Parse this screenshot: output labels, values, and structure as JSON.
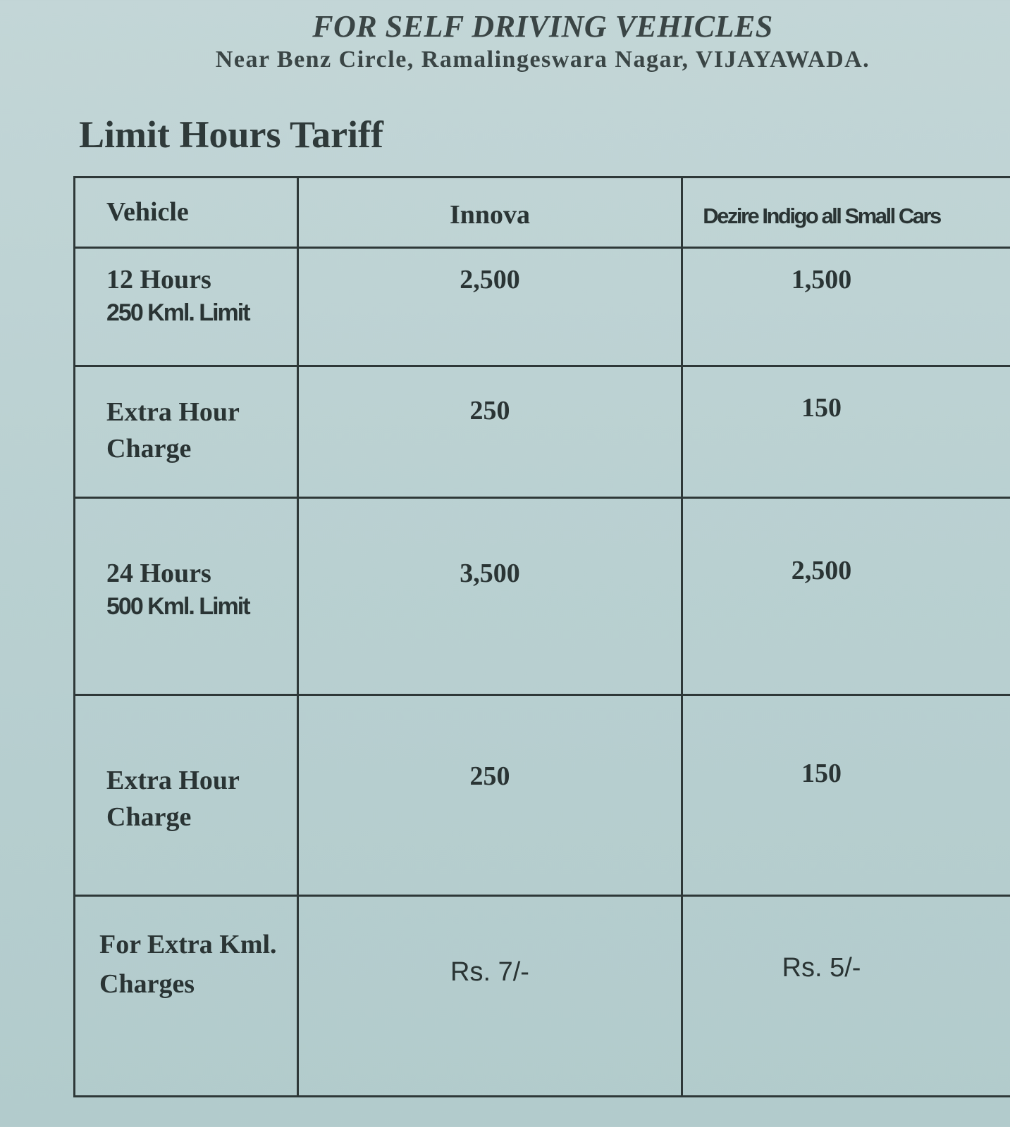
{
  "header": {
    "line1": "FOR SELF DRIVING VEHICLES",
    "line2": "Near Benz Circle, Ramalingeswara Nagar, VIJAYAWADA."
  },
  "title": "Limit Hours Tariff",
  "table": {
    "headers": [
      "Vehicle",
      "Innova",
      "Dezire Indigo all Small Cars"
    ],
    "rows": [
      {
        "label": "12 Hours",
        "sub": "250 Kml. Limit",
        "innova": "2,500",
        "small": "1,500"
      },
      {
        "label": "Extra Hour Charge",
        "sub": "",
        "innova": "250",
        "small": "150"
      },
      {
        "label": "24 Hours",
        "sub": "500 Kml. Limit",
        "innova": "3,500",
        "small": "2,500"
      },
      {
        "label": "Extra Hour Charge",
        "sub": "",
        "innova": "250",
        "small": "150"
      },
      {
        "label": "For Extra Kml. Charges",
        "sub": "",
        "innova": "Rs. 7/-",
        "small": "Rs. 5/-"
      }
    ]
  }
}
